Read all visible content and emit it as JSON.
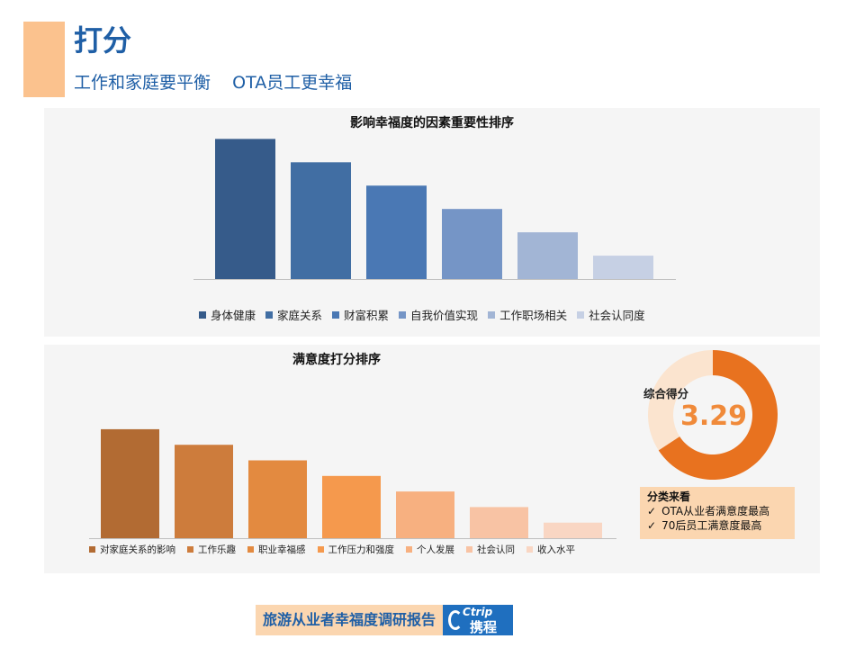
{
  "header": {
    "title": "打分",
    "subtitle": "工作和家庭要平衡    OTA员工更幸福",
    "accent_color": "#fbc28e"
  },
  "chart_data": [
    {
      "type": "bar",
      "title": "影响幸福度的因素重要性排序",
      "series": [
        {
          "name": "身体健康",
          "value": 6,
          "color": "#365b8a"
        },
        {
          "name": "家庭关系",
          "value": 5,
          "color": "#416ea3"
        },
        {
          "name": "财富积累",
          "value": 4,
          "color": "#4a78b4"
        },
        {
          "name": "自我价值实现",
          "value": 3,
          "color": "#7595c6"
        },
        {
          "name": "工作职场相关",
          "value": 2,
          "color": "#a2b5d5"
        },
        {
          "name": "社会认同度",
          "value": 1,
          "color": "#c6d0e4"
        }
      ],
      "ylim": [
        0,
        6.4
      ],
      "legend": "bottom",
      "grid": false
    },
    {
      "type": "bar",
      "title": "满意度打分排序",
      "series": [
        {
          "name": "对家庭关系的影响",
          "value": 7,
          "color": "#b26b33"
        },
        {
          "name": "工作乐趣",
          "value": 6,
          "color": "#cd7c3c"
        },
        {
          "name": "职业幸福感",
          "value": 5,
          "color": "#e38a40"
        },
        {
          "name": "工作压力和强度",
          "value": 4,
          "color": "#f5994d"
        },
        {
          "name": "个人发展",
          "value": 3,
          "color": "#f7b080"
        },
        {
          "name": "社会认同",
          "value": 2,
          "color": "#f8c3a4"
        },
        {
          "name": "收入水平",
          "value": 1,
          "color": "#f9d6c3"
        }
      ],
      "ylim": [
        0,
        7.4
      ],
      "legend": "bottom",
      "grid": false
    },
    {
      "type": "pie",
      "label": "综合得分",
      "value": 3.29,
      "display_value": "3.29",
      "fraction": 0.658,
      "colors": {
        "filled": "#e8721f",
        "remaining": "#fbe4cf"
      }
    }
  ],
  "category_box": {
    "title": "分类来看",
    "items": [
      "OTA从业者满意度最高",
      "70后员工满意度最高"
    ],
    "check_symbol": "✓"
  },
  "footer": {
    "report_title": "旅游从业者幸福度调研报告",
    "logo_en": "Ctrip",
    "logo_cn": "携程"
  }
}
